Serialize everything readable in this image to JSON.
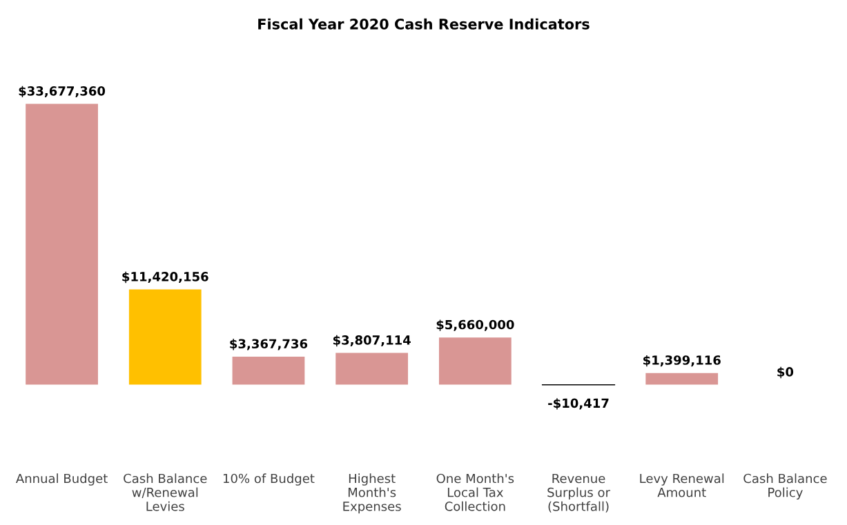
{
  "chart_data": {
    "type": "bar",
    "title": "Fiscal Year 2020 Cash Reserve Indicators",
    "categories": [
      "Annual Budget",
      "Cash Balance\nw/Renewal\nLevies",
      "10% of Budget",
      "Highest\nMonth's\nExpenses",
      "One Month's\nLocal Tax\nCollection",
      "Revenue\nSurplus or\n(Shortfall)",
      "Levy Renewal\nAmount",
      "Cash Balance\nPolicy"
    ],
    "values": [
      33677360,
      11420156,
      3367736,
      3807114,
      5660000,
      -10417,
      1399116,
      0
    ],
    "colors": [
      "#d99694",
      "#ffc000",
      "#d99694",
      "#d99694",
      "#d99694",
      "#d99694",
      "#d99694",
      "#d99694"
    ],
    "value_labels": [
      "$33,677,360",
      "$11,420,156",
      "$3,367,736",
      "$3,807,114",
      "$5,660,000",
      "-$10,417",
      "$1,399,116",
      "$0"
    ],
    "grid": false,
    "legend": false
  }
}
